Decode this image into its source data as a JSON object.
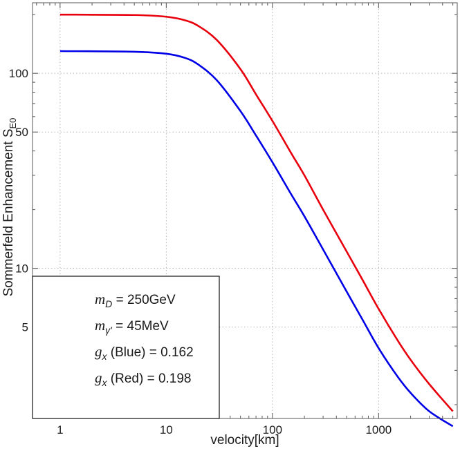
{
  "chart_data": {
    "type": "line",
    "xscale": "log",
    "yscale": "log",
    "xlim": [
      0.55,
      5500
    ],
    "ylim": [
      1.7,
      230
    ],
    "xlabel": "velocity[km]",
    "ylabel_main": "Sommerfeld Enhancement S",
    "ylabel_sub": "E0",
    "x_ticks": [
      {
        "value": 1,
        "label": "1"
      },
      {
        "value": 10,
        "label": "10"
      },
      {
        "value": 100,
        "label": "100"
      },
      {
        "value": 1000,
        "label": "1000"
      }
    ],
    "y_ticks": [
      {
        "value": 5,
        "label": "5"
      },
      {
        "value": 10,
        "label": "10"
      },
      {
        "value": 50,
        "label": "50"
      },
      {
        "value": 100,
        "label": "100"
      }
    ],
    "grid": true,
    "series": [
      {
        "color": "#e8000d",
        "x": [
          1,
          5,
          10,
          15,
          20,
          30,
          50,
          70,
          100,
          150,
          200,
          300,
          500,
          700,
          1000,
          1500,
          2000,
          3000,
          5000
        ],
        "y": [
          200,
          199,
          195,
          187,
          175,
          148,
          105,
          78,
          57,
          39,
          30,
          20,
          12.2,
          8.8,
          6.2,
          4.3,
          3.4,
          2.55,
          1.85
        ]
      },
      {
        "color": "#0000e6",
        "x": [
          1,
          5,
          10,
          15,
          20,
          30,
          50,
          70,
          100,
          150,
          200,
          300,
          500,
          700,
          1000,
          1500,
          2000,
          3000,
          5000
        ],
        "y": [
          130,
          129,
          126,
          120,
          111,
          92,
          64,
          48,
          35,
          24,
          18.5,
          12.5,
          7.6,
          5.5,
          3.9,
          2.8,
          2.3,
          1.85,
          1.55
        ]
      }
    ],
    "legend": {
      "placement": "bottom-left",
      "lines": [
        {
          "sym": "m",
          "sub": "D",
          "rest": " = 250GeV"
        },
        {
          "sym": "m",
          "sub": "γ'",
          "rest": " = 45MeV"
        },
        {
          "sym": "g",
          "sub": "x",
          "rest": " (Blue) = 0.162"
        },
        {
          "sym": "g",
          "sub": "x",
          "rest": " (Red) = 0.198"
        }
      ]
    }
  }
}
